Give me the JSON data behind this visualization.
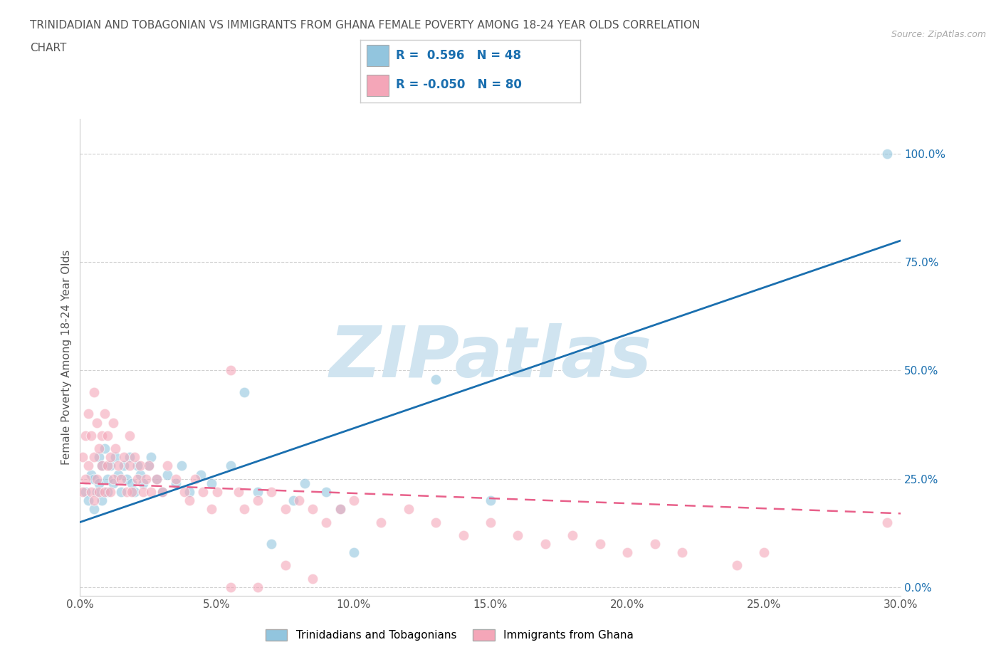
{
  "title_line1": "TRINIDADIAN AND TOBAGONIAN VS IMMIGRANTS FROM GHANA FEMALE POVERTY AMONG 18-24 YEAR OLDS CORRELATION",
  "title_line2": "CHART",
  "source": "Source: ZipAtlas.com",
  "ylabel": "Female Poverty Among 18-24 Year Olds",
  "xmin": 0.0,
  "xmax": 0.3,
  "ymin": -0.02,
  "ymax": 1.08,
  "blue_R": 0.596,
  "blue_N": 48,
  "pink_R": -0.05,
  "pink_N": 80,
  "blue_color": "#92c5de",
  "pink_color": "#f4a6b8",
  "blue_line_color": "#1a6faf",
  "pink_line_color": "#e8608a",
  "watermark": "ZIPatlas",
  "watermark_color": "#d0e4f0",
  "legend_label_blue": "Trinidadians and Tobagonians",
  "legend_label_pink": "Immigrants from Ghana",
  "ytick_labels": [
    "0.0%",
    "25.0%",
    "50.0%",
    "75.0%",
    "100.0%"
  ],
  "ytick_vals": [
    0.0,
    0.25,
    0.5,
    0.75,
    1.0
  ],
  "xtick_vals": [
    0.0,
    0.05,
    0.1,
    0.15,
    0.2,
    0.25,
    0.3
  ],
  "xtick_labels": [
    "0.0%",
    "5.0%",
    "10.0%",
    "15.0%",
    "20.0%",
    "25.0%",
    "30.0%"
  ],
  "blue_x": [
    0.002,
    0.003,
    0.004,
    0.005,
    0.005,
    0.006,
    0.007,
    0.007,
    0.008,
    0.008,
    0.009,
    0.01,
    0.01,
    0.011,
    0.012,
    0.013,
    0.014,
    0.015,
    0.016,
    0.017,
    0.018,
    0.019,
    0.02,
    0.021,
    0.022,
    0.023,
    0.025,
    0.026,
    0.028,
    0.03,
    0.032,
    0.035,
    0.037,
    0.04,
    0.044,
    0.048,
    0.055,
    0.06,
    0.065,
    0.07,
    0.078,
    0.082,
    0.09,
    0.095,
    0.1,
    0.13,
    0.295,
    0.15
  ],
  "blue_y": [
    0.22,
    0.2,
    0.26,
    0.18,
    0.25,
    0.22,
    0.3,
    0.24,
    0.28,
    0.2,
    0.32,
    0.25,
    0.22,
    0.28,
    0.24,
    0.3,
    0.26,
    0.22,
    0.28,
    0.25,
    0.3,
    0.24,
    0.22,
    0.28,
    0.26,
    0.24,
    0.28,
    0.3,
    0.25,
    0.22,
    0.26,
    0.24,
    0.28,
    0.22,
    0.26,
    0.24,
    0.28,
    0.45,
    0.22,
    0.1,
    0.2,
    0.24,
    0.22,
    0.18,
    0.08,
    0.48,
    1.0,
    0.2
  ],
  "pink_x": [
    0.001,
    0.001,
    0.002,
    0.002,
    0.003,
    0.003,
    0.004,
    0.004,
    0.005,
    0.005,
    0.005,
    0.006,
    0.006,
    0.007,
    0.007,
    0.008,
    0.008,
    0.009,
    0.009,
    0.01,
    0.01,
    0.011,
    0.011,
    0.012,
    0.012,
    0.013,
    0.014,
    0.015,
    0.016,
    0.017,
    0.018,
    0.018,
    0.019,
    0.02,
    0.021,
    0.022,
    0.023,
    0.024,
    0.025,
    0.026,
    0.028,
    0.03,
    0.032,
    0.035,
    0.038,
    0.04,
    0.042,
    0.045,
    0.048,
    0.05,
    0.055,
    0.058,
    0.06,
    0.065,
    0.07,
    0.075,
    0.08,
    0.085,
    0.09,
    0.095,
    0.1,
    0.11,
    0.12,
    0.13,
    0.14,
    0.15,
    0.16,
    0.17,
    0.18,
    0.19,
    0.2,
    0.21,
    0.22,
    0.24,
    0.25,
    0.055,
    0.065,
    0.075,
    0.085,
    0.295
  ],
  "pink_y": [
    0.3,
    0.22,
    0.35,
    0.25,
    0.4,
    0.28,
    0.35,
    0.22,
    0.45,
    0.3,
    0.2,
    0.38,
    0.25,
    0.32,
    0.22,
    0.35,
    0.28,
    0.4,
    0.22,
    0.35,
    0.28,
    0.3,
    0.22,
    0.38,
    0.25,
    0.32,
    0.28,
    0.25,
    0.3,
    0.22,
    0.28,
    0.35,
    0.22,
    0.3,
    0.25,
    0.28,
    0.22,
    0.25,
    0.28,
    0.22,
    0.25,
    0.22,
    0.28,
    0.25,
    0.22,
    0.2,
    0.25,
    0.22,
    0.18,
    0.22,
    0.5,
    0.22,
    0.18,
    0.2,
    0.22,
    0.18,
    0.2,
    0.18,
    0.15,
    0.18,
    0.2,
    0.15,
    0.18,
    0.15,
    0.12,
    0.15,
    0.12,
    0.1,
    0.12,
    0.1,
    0.08,
    0.1,
    0.08,
    0.05,
    0.08,
    0.0,
    0.0,
    0.05,
    0.02,
    0.15
  ]
}
